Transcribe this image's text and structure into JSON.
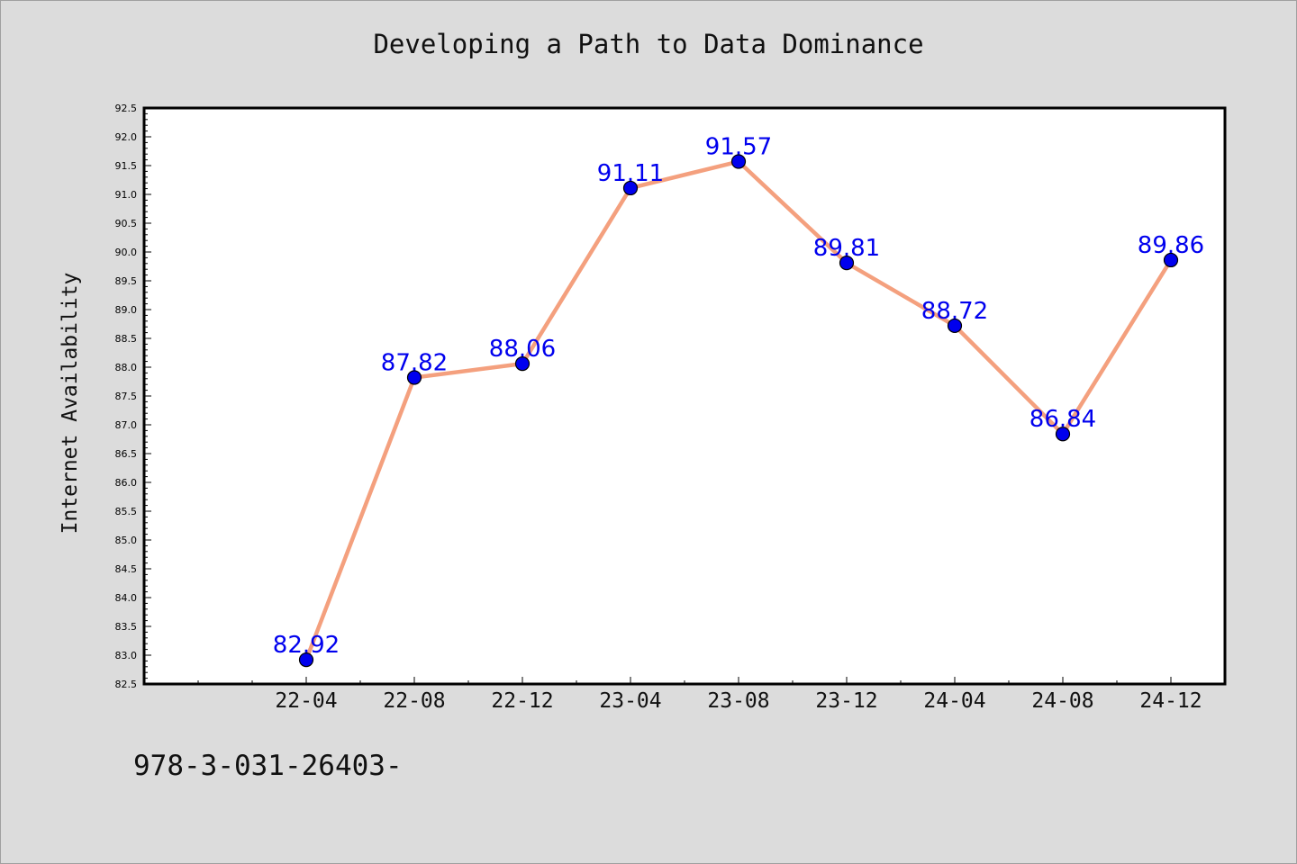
{
  "chart_data": {
    "type": "line",
    "title": "Developing a Path to Data Dominance",
    "xlabel": "",
    "ylabel": "Internet Availability",
    "categories": [
      "22-04",
      "22-08",
      "22-12",
      "23-04",
      "23-08",
      "23-12",
      "24-04",
      "24-08",
      "24-12"
    ],
    "values": [
      82.92,
      87.82,
      88.06,
      91.11,
      91.57,
      89.81,
      88.72,
      86.84,
      89.86
    ],
    "data_labels": [
      "82.92",
      "87.82",
      "88.06",
      "91.11",
      "91.57",
      "89.81",
      "88.72",
      "86.84",
      "89.86"
    ],
    "ylim": [
      82.5,
      92.5
    ],
    "y_major_step": 0.5,
    "y_tick_labels": [
      "82.5",
      "83.0",
      "83.5",
      "84.0",
      "84.5",
      "85.0",
      "85.5",
      "86.0",
      "86.5",
      "87.0",
      "87.5",
      "88.0",
      "88.5",
      "89.0",
      "89.5",
      "90.0",
      "90.5",
      "91.0",
      "91.5",
      "92.0",
      "92.5"
    ],
    "grid": false,
    "legend": "none",
    "colors": {
      "line": "#f4a07e",
      "marker": "#0000ee",
      "label": "#0000ee",
      "plot_background": "#ffffff",
      "page_background": "#dcdcdc"
    }
  },
  "footer": {
    "code": "978-3-031-26403-"
  }
}
